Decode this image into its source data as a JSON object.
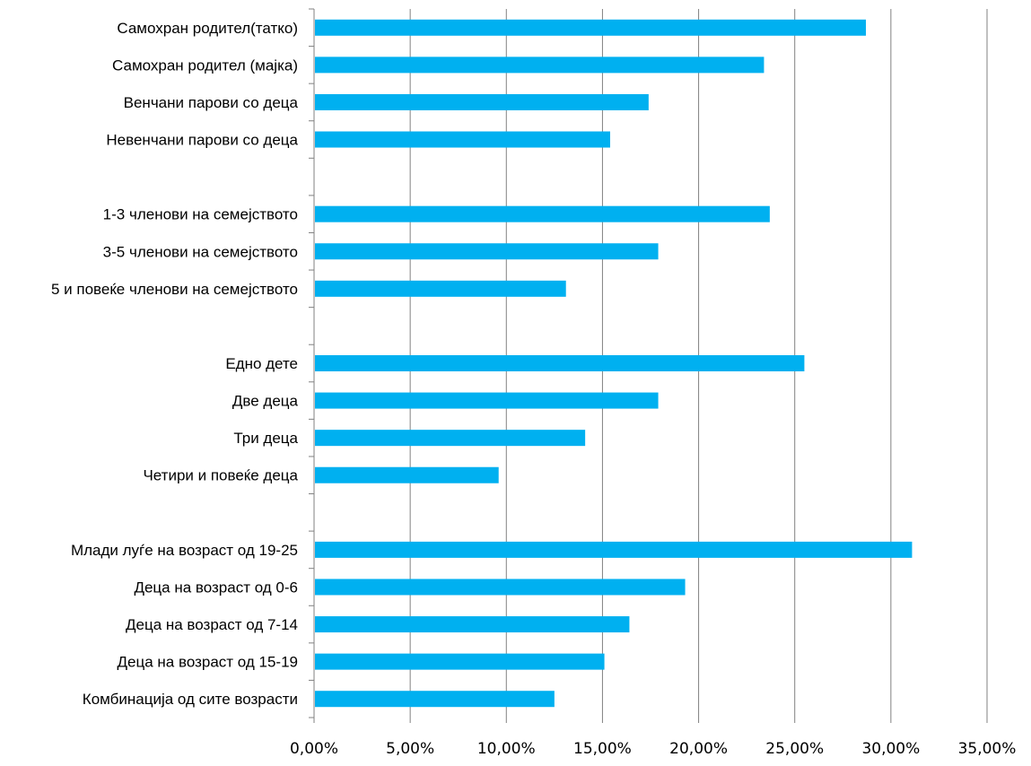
{
  "chart_data": {
    "type": "bar",
    "orientation": "horizontal",
    "title": "",
    "xlabel": "",
    "ylabel": "",
    "xlim": [
      0,
      35
    ],
    "grid": true,
    "legend": "none",
    "bar_color": "#00B0F0",
    "grid_color": "#808080",
    "x_ticks": [
      "0,00%",
      "5,00%",
      "10,00%",
      "15,00%",
      "20,00%",
      "25,00%",
      "30,00%",
      "35,00%"
    ],
    "x_tick_values": [
      0,
      5,
      10,
      15,
      20,
      25,
      30,
      35
    ],
    "categories": [
      "Самохран родител(татко)",
      "Самохран родител (мајка)",
      "Венчани парови со деца",
      "Невенчани парови со деца",
      "",
      "1-3 членови на семејството",
      "3-5 членови на семејството",
      "5 и повеќе членови на семејството",
      "",
      "Едно дете",
      "Две деца",
      "Три деца",
      "Четири и повеќе деца",
      "",
      "Млади луѓе на возраст од 19-25",
      "Деца на возраст од 0-6",
      "Деца на возраст од 7-14",
      "Деца на возраст од 15-19",
      "Комбинација од сите возрасти"
    ],
    "values": [
      28.7,
      23.4,
      17.4,
      15.4,
      null,
      23.7,
      17.9,
      13.1,
      null,
      25.5,
      17.9,
      14.1,
      9.6,
      null,
      31.1,
      19.3,
      16.4,
      15.1,
      12.5
    ]
  }
}
